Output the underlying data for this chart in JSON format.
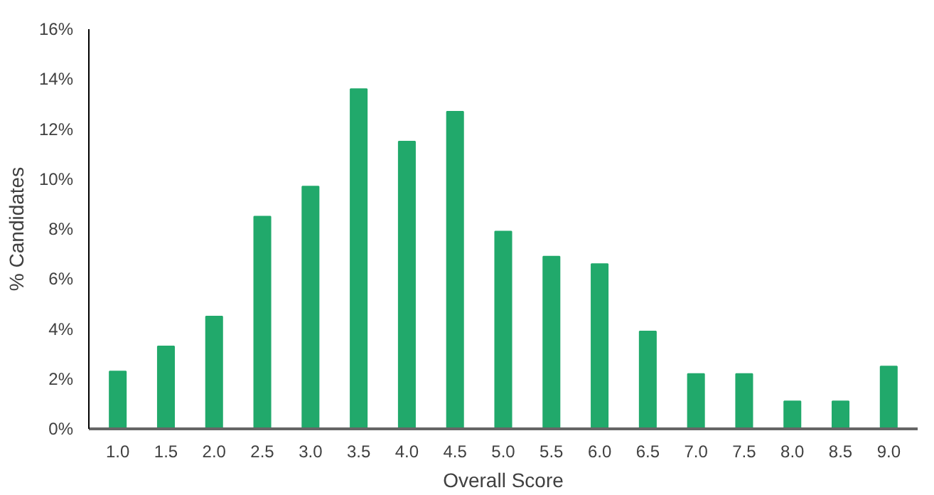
{
  "chart_data": {
    "type": "bar",
    "xlabel": "Overall Score",
    "ylabel": "% Candidates",
    "categories": [
      "1.0",
      "1.5",
      "2.0",
      "2.5",
      "3.0",
      "3.5",
      "4.0",
      "4.5",
      "5.0",
      "5.5",
      "6.0",
      "6.5",
      "7.0",
      "7.5",
      "8.0",
      "8.5",
      "9.0"
    ],
    "values": [
      2.3,
      3.3,
      4.5,
      8.5,
      9.7,
      13.6,
      11.5,
      12.7,
      7.9,
      6.9,
      6.6,
      3.9,
      2.2,
      2.2,
      1.1,
      1.1,
      2.5
    ],
    "color": "#21a96b",
    "ylim": [
      0,
      16
    ],
    "yticks": [
      {
        "value": 0,
        "label": "0%"
      },
      {
        "value": 2,
        "label": "2%"
      },
      {
        "value": 4,
        "label": "4%"
      },
      {
        "value": 6,
        "label": "6%"
      },
      {
        "value": 8,
        "label": "8%"
      },
      {
        "value": 10,
        "label": "10%"
      },
      {
        "value": 12,
        "label": "12%"
      },
      {
        "value": 14,
        "label": "14%"
      },
      {
        "value": 16,
        "label": "16%"
      }
    ],
    "grid": false
  }
}
